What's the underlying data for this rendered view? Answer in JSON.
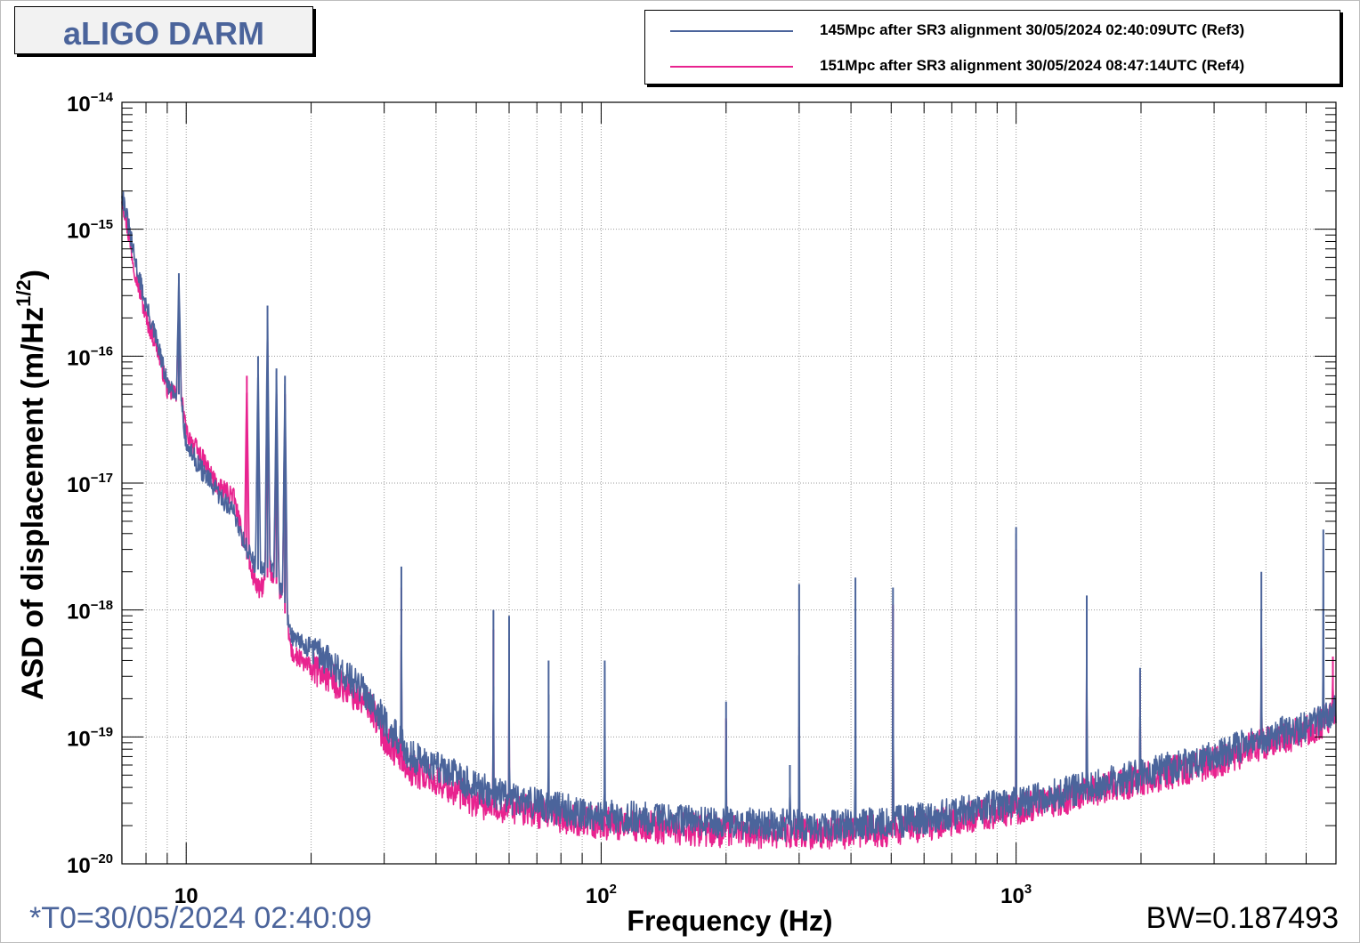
{
  "title": "aLIGO DARM",
  "t0_label": "*T0=30/05/2024 02:40:09",
  "bw_label": "BW=0.187493",
  "colors": {
    "ref3": "#4b649b",
    "ref4": "#e8238f",
    "grid": "#9a9a9a",
    "title_box": "#f2f2f2"
  },
  "legend": [
    {
      "label": "145Mpc after SR3 alignment 30/05/2024 02:40:09UTC (Ref3)",
      "color": "#4b649b"
    },
    {
      "label": "151Mpc after SR3 alignment 30/05/2024 08:47:14UTC (Ref4)",
      "color": "#e8238f"
    }
  ],
  "chart_data": {
    "type": "line",
    "title": "aLIGO DARM",
    "xlabel": "Frequency (Hz)",
    "ylabel_main": "ASD of displacement (m/Hz",
    "ylabel_exp": "1/2",
    "ylabel_close": ")",
    "xscale": "log",
    "yscale": "log",
    "xlim": [
      7,
      5900
    ],
    "ylim": [
      1e-20,
      1e-14
    ],
    "grid": true,
    "legend_position": "top-right",
    "x_ticks": [
      {
        "value": 10,
        "base": "10",
        "exp": ""
      },
      {
        "value": 100,
        "base": "10",
        "exp": "2"
      },
      {
        "value": 1000,
        "base": "10",
        "exp": "3"
      }
    ],
    "y_ticks": [
      {
        "value": 1e-14,
        "base": "10",
        "exp": "−14"
      },
      {
        "value": 1e-15,
        "base": "10",
        "exp": "−15"
      },
      {
        "value": 1e-16,
        "base": "10",
        "exp": "−16"
      },
      {
        "value": 1e-17,
        "base": "10",
        "exp": "−17"
      },
      {
        "value": 1e-18,
        "base": "10",
        "exp": "−18"
      },
      {
        "value": 1e-19,
        "base": "10",
        "exp": "−19"
      },
      {
        "value": 1e-20,
        "base": "10",
        "exp": "−20"
      }
    ],
    "series": [
      {
        "name": "145Mpc after SR3 alignment 30/05/2024 02:40:09UTC (Ref3)",
        "color": "#4b649b",
        "baseline": [
          [
            7,
            2e-15
          ],
          [
            7.5,
            6e-16
          ],
          [
            8,
            2.5e-16
          ],
          [
            8.5,
            1.3e-16
          ],
          [
            9,
            6e-17
          ],
          [
            9.3,
            5e-17
          ],
          [
            9.7,
            5e-17
          ],
          [
            10,
            2e-17
          ],
          [
            11,
            1.2e-17
          ],
          [
            12,
            8e-18
          ],
          [
            13,
            6e-18
          ],
          [
            14,
            3e-18
          ],
          [
            15,
            2e-18
          ],
          [
            16,
            2.2e-18
          ],
          [
            17,
            1.5e-18
          ],
          [
            18,
            6e-19
          ],
          [
            20,
            5e-19
          ],
          [
            22,
            4e-19
          ],
          [
            25,
            2.8e-19
          ],
          [
            28,
            2e-19
          ],
          [
            30,
            1.3e-19
          ],
          [
            35,
            7e-20
          ],
          [
            40,
            6e-20
          ],
          [
            50,
            4e-20
          ],
          [
            60,
            3.3e-20
          ],
          [
            80,
            2.7e-20
          ],
          [
            100,
            2.4e-20
          ],
          [
            150,
            2.2e-20
          ],
          [
            200,
            2.1e-20
          ],
          [
            300,
            2e-20
          ],
          [
            400,
            2e-20
          ],
          [
            500,
            2.1e-20
          ],
          [
            600,
            2.3e-20
          ],
          [
            800,
            2.7e-20
          ],
          [
            1000,
            3e-20
          ],
          [
            1500,
            4e-20
          ],
          [
            2000,
            5e-20
          ],
          [
            3000,
            7e-20
          ],
          [
            4000,
            1e-19
          ],
          [
            5000,
            1.2e-19
          ],
          [
            5900,
            1.6e-19
          ]
        ],
        "peaks": [
          [
            9.6,
            4.5e-16
          ],
          [
            14.9,
            1e-16
          ],
          [
            15.7,
            2.5e-16
          ],
          [
            16.5,
            8e-17
          ],
          [
            17.3,
            7e-17
          ],
          [
            33,
            2.2e-18
          ],
          [
            55,
            1e-18
          ],
          [
            60,
            9e-19
          ],
          [
            74.7,
            4e-19
          ],
          [
            102,
            4e-19
          ],
          [
            200,
            1.9e-19
          ],
          [
            285,
            6e-20
          ],
          [
            300,
            1.6e-18
          ],
          [
            410,
            1.8e-18
          ],
          [
            505,
            1.5e-18
          ],
          [
            1000,
            4.5e-18
          ],
          [
            1480,
            1.3e-18
          ],
          [
            1990,
            3.5e-19
          ],
          [
            3900,
            2e-18
          ],
          [
            5500,
            4.3e-18
          ]
        ]
      },
      {
        "name": "151Mpc after SR3 alignment 30/05/2024 08:47:14UTC (Ref4)",
        "color": "#e8238f",
        "baseline": [
          [
            7,
            1.8e-15
          ],
          [
            7.5,
            5e-16
          ],
          [
            8,
            2e-16
          ],
          [
            8.5,
            1.2e-16
          ],
          [
            9,
            5.5e-17
          ],
          [
            9.3,
            5e-17
          ],
          [
            9.7,
            5e-17
          ],
          [
            10,
            2.5e-17
          ],
          [
            11,
            1.5e-17
          ],
          [
            12,
            9e-18
          ],
          [
            13,
            8e-18
          ],
          [
            14,
            2.5e-18
          ],
          [
            15,
            1.4e-18
          ],
          [
            16,
            2e-18
          ],
          [
            17,
            1.3e-18
          ],
          [
            18,
            4.5e-19
          ],
          [
            20,
            3.5e-19
          ],
          [
            22,
            3e-19
          ],
          [
            25,
            2.2e-19
          ],
          [
            28,
            1.7e-19
          ],
          [
            30,
            1e-19
          ],
          [
            35,
            5.5e-20
          ],
          [
            40,
            4.6e-20
          ],
          [
            50,
            3e-20
          ],
          [
            60,
            2.8e-20
          ],
          [
            80,
            2.3e-20
          ],
          [
            100,
            2.1e-20
          ],
          [
            150,
            1.9e-20
          ],
          [
            200,
            1.8e-20
          ],
          [
            300,
            1.75e-20
          ],
          [
            400,
            1.75e-20
          ],
          [
            500,
            1.85e-20
          ],
          [
            600,
            2e-20
          ],
          [
            800,
            2.4e-20
          ],
          [
            1000,
            2.7e-20
          ],
          [
            1500,
            3.6e-20
          ],
          [
            2000,
            4.6e-20
          ],
          [
            3000,
            6.3e-20
          ],
          [
            4000,
            9e-20
          ],
          [
            5000,
            1.1e-19
          ],
          [
            5900,
            1.5e-19
          ]
        ],
        "peaks": [
          [
            9.6,
            3e-16
          ],
          [
            14,
            7e-17
          ],
          [
            15.7,
            1.3e-16
          ],
          [
            16.5,
            5e-17
          ],
          [
            17.3,
            5e-17
          ],
          [
            33,
            1.5e-18
          ],
          [
            55,
            7e-19
          ],
          [
            60,
            6e-19
          ],
          [
            200,
            1.4e-19
          ],
          [
            300,
            1.2e-19
          ],
          [
            505,
            1.1e-18
          ],
          [
            1000,
            3e-18
          ],
          [
            1480,
            1e-18
          ],
          [
            1990,
            3.2e-19
          ],
          [
            3900,
            5e-19
          ],
          [
            5500,
            2.6e-19
          ],
          [
            5800,
            4.3e-19
          ]
        ]
      }
    ]
  }
}
